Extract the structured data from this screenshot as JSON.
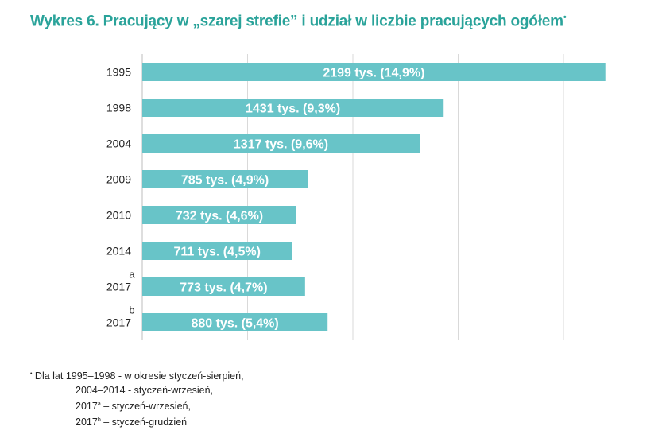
{
  "title": {
    "text": "Wykres 6. Pracujący w „szarej strefie” i udział w liczbie pracujących ogółem",
    "marker": "•"
  },
  "chart_data": {
    "type": "bar",
    "orientation": "horizontal",
    "title": "Wykres 6. Pracujący w „szarej strefie” i udział w liczbie pracujących ogółem",
    "categories": [
      "1995",
      "1998",
      "2004",
      "2009",
      "2010",
      "2014",
      "2017",
      "2017"
    ],
    "category_superscripts": [
      "",
      "",
      "",
      "",
      "",
      "",
      "a",
      "b"
    ],
    "values": [
      2199,
      1431,
      1317,
      785,
      732,
      711,
      773,
      880
    ],
    "data_labels": [
      "2199 tys. (14,9%)",
      "1431 tys. (9,3%)",
      "1317 tys.  (9,6%)",
      "785 tys. (4,9%)",
      "732 tys. (4,6%)",
      "711 tys. (4,5%)",
      "773 tys. (4,7%)",
      "880 tys. (5,4%)"
    ],
    "xlim": [
      0,
      2250
    ],
    "grid": true,
    "bar_color": "#68c4c8",
    "label_color": "#ffffff"
  },
  "footnotes": {
    "marker": "•",
    "line1": " Dla lat 1995–1998 - w okresie styczeń-sierpień,",
    "line2": "2004–2014 - styczeń-wrzesień,",
    "line3_year": "2017",
    "line3_sup": "a",
    "line3_text": " – styczeń-wrzesień,",
    "line4_year": "2017",
    "line4_sup": "b",
    "line4_text": " – styczeń-grudzień"
  }
}
